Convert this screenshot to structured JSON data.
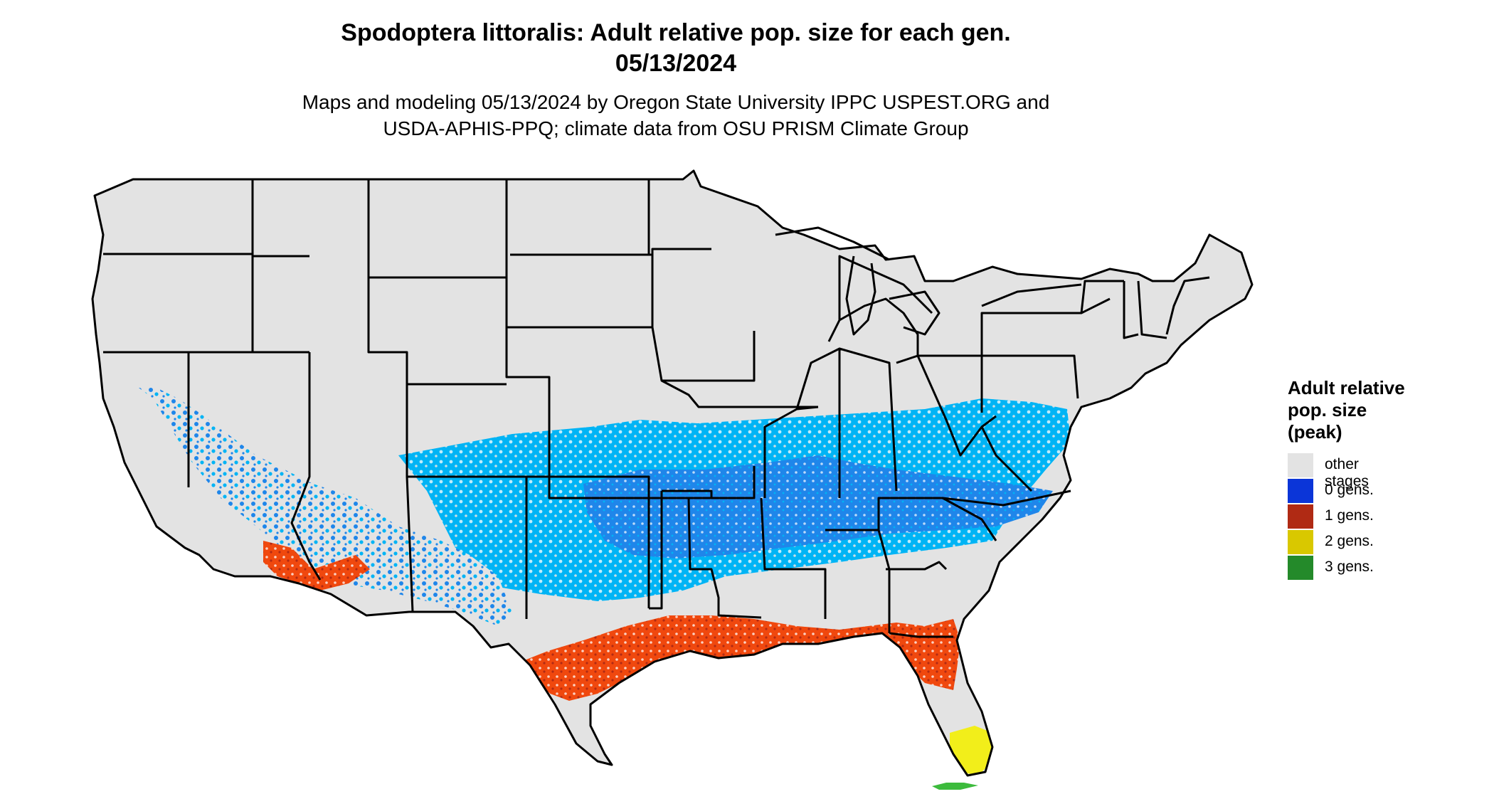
{
  "header": {
    "title_line1": "Spodoptera littoralis: Adult relative pop. size for each gen.",
    "title_line2": "05/13/2024",
    "subtitle_line1": "Maps and modeling 05/13/2024 by Oregon State University IPPC USPEST.ORG and",
    "subtitle_line2": "USDA-APHIS-PPQ; climate data from OSU PRISM Climate Group"
  },
  "legend": {
    "title_line1": "Adult relative",
    "title_line2": "pop. size",
    "title_line3": "(peak)",
    "items": [
      {
        "label": "other stages",
        "color": "#e3e3e3"
      },
      {
        "label": "0 gens.",
        "color": "#0b35d8"
      },
      {
        "label": "1 gens.",
        "color": "#b02a14"
      },
      {
        "label": "2 gens.",
        "color": "#d9c800"
      },
      {
        "label": "3 gens.",
        "color": "#248a2a"
      }
    ]
  },
  "map": {
    "base_color": "#e3e3e3",
    "border_color": "#000000",
    "bands": [
      {
        "category": "0 gens. (light)",
        "color": "#00b4f5"
      },
      {
        "category": "0 gens. (mid)",
        "color": "#1f86ea"
      },
      {
        "category": "1 gens.",
        "color": "#f0480e"
      },
      {
        "category": "2 gens.",
        "color": "#f2ee1a"
      },
      {
        "category": "3 gens.",
        "color": "#3dbb3d"
      }
    ]
  }
}
